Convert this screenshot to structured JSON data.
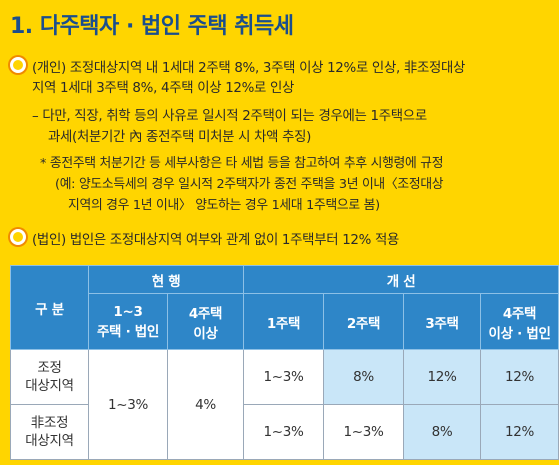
{
  "title": "1. 다주택자 · 법인 주택 취득세",
  "bullets": {
    "individual": {
      "line1": "(개인) 조정대상지역 내 1세대 2주택 8%, 3주택 이상 12%로 인상, 非조정대상",
      "line2": "지역 1세대 3주택 8%, 4주택 이상 12%로 인상",
      "note_line1": "– 다만, 직장, 취학 등의 사유로 일시적 2주택이 되는 경우에는 1주택으로",
      "note_line2": "과세(처분기간 內 종전주택 미처분 시 차액 추징)",
      "footnote_line1": "* 종전주택 처분기간 등 세부사항은 타 세법 등을 참고하여 추후 시행령에 규정",
      "footnote_line2": "(예: 양도소득세의 경우 일시적 2주택자가 종전 주택을 3년 이내〈조정대상",
      "footnote_line3": "지역의 경우 1년 이내〉 양도하는 경우 1세대 1주택으로 봄)"
    },
    "corporate": {
      "line1": "(법인) 법인은 조정대상지역 여부와 관계 없이 1주택부터 12% 적용"
    }
  },
  "table": {
    "corner": "구  분",
    "group_current": "현   행",
    "group_improve": "개   선",
    "current_headers": [
      {
        "line1": "1~3",
        "line2": "주택 · 법인"
      },
      {
        "line1": "4주택",
        "line2": "이상"
      }
    ],
    "improve_headers": [
      {
        "line1": "1주택",
        "line2": ""
      },
      {
        "line1": "2주택",
        "line2": ""
      },
      {
        "line1": "3주택",
        "line2": ""
      },
      {
        "line1": "4주택",
        "line2": "이상 · 법인"
      }
    ],
    "rows": [
      {
        "label_line1": "조정",
        "label_line2": "대상지역",
        "improve": [
          "1~3%",
          "8%",
          "12%",
          "12%"
        ]
      },
      {
        "label_line1": "非조정",
        "label_line2": "대상지역",
        "improve": [
          "1~3%",
          "1~3%",
          "8%",
          "12%"
        ]
      }
    ],
    "current_values": [
      "1~3%",
      "4%"
    ]
  },
  "colors": {
    "background": "#FFD500",
    "title": "#1A4E8E",
    "header": "#2E86C8",
    "highlight": "#C9E6F8",
    "bullet_ring": "#F08A00"
  }
}
